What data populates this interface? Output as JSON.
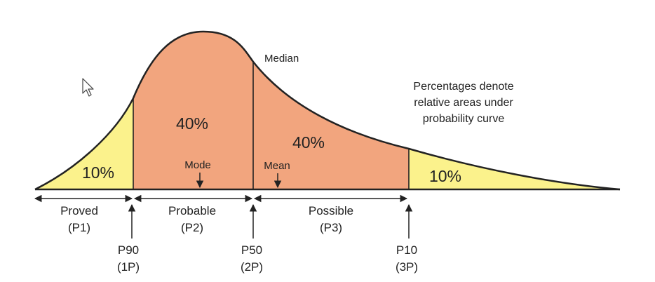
{
  "colors": {
    "tail_fill": "#fbf28c",
    "core_fill": "#f2a57e",
    "outline": "#222222",
    "background": "#ffffff"
  },
  "curve": {
    "median_label": "Median",
    "mode_label": "Mode",
    "mean_label": "Mean"
  },
  "regions": [
    {
      "percent": "10%"
    },
    {
      "percent": "40%"
    },
    {
      "percent": "40%"
    },
    {
      "percent": "10%"
    }
  ],
  "note": {
    "lines": [
      "Percentages denote",
      "relative areas under",
      "probability curve"
    ]
  },
  "ranges": [
    {
      "name": "Proved",
      "code": "(P1)"
    },
    {
      "name": "Probable",
      "code": "(P2)"
    },
    {
      "name": "Possible",
      "code": "(P3)"
    }
  ],
  "markers": [
    {
      "name": "P90",
      "code": "(1P)"
    },
    {
      "name": "P50",
      "code": "(2P)"
    },
    {
      "name": "P10",
      "code": "(3P)"
    }
  ],
  "cursor_icon": "mouse-pointer-icon"
}
